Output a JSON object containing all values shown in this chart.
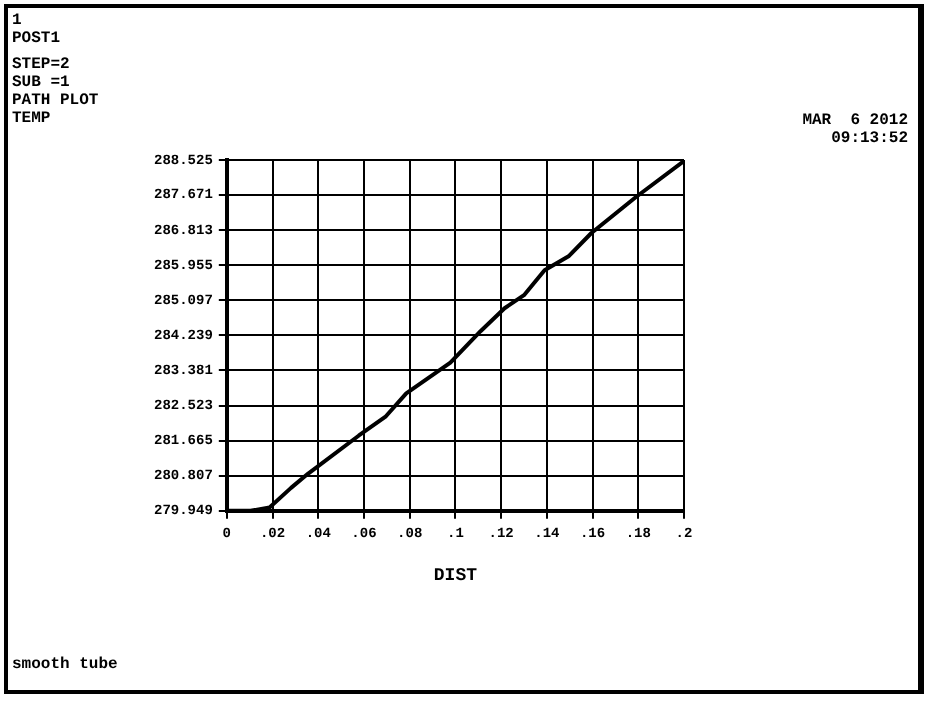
{
  "chart_data": {
    "type": "line",
    "xlabel": "DIST",
    "annotations": [
      "1",
      "POST1",
      "STEP=2",
      "SUB =1",
      "PATH PLOT",
      "TEMP",
      "MAR  6 2012",
      "09:13:52",
      "smooth tube"
    ],
    "x": [
      0,
      0.0104,
      0.0187,
      0.0281,
      0.0356,
      0.0578,
      0.0696,
      0.0785,
      0.0978,
      0.111,
      0.1215,
      0.13,
      0.139,
      0.1497,
      0.1595,
      0.179,
      0.2
    ],
    "series": [
      {
        "color": "#000000",
        "values": [
          279.95,
          279.95,
          280.03,
          280.51,
          280.86,
          281.79,
          282.26,
          282.82,
          283.57,
          284.34,
          284.9,
          285.22,
          285.83,
          286.18,
          286.74,
          287.62,
          288.5
        ]
      }
    ],
    "xlim": [
      0,
      0.2
    ],
    "xticks": [
      0,
      {
        "value": 0.02,
        "label": ".02"
      },
      {
        "value": 0.04,
        "label": ".04"
      },
      {
        "value": 0.06,
        "label": ".06"
      },
      {
        "value": 0.08,
        "label": ".08"
      },
      {
        "value": 0.1,
        "label": ".1"
      },
      {
        "value": 0.12,
        "label": ".12"
      },
      {
        "value": 0.14,
        "label": ".14"
      },
      {
        "value": 0.16,
        "label": ".16"
      },
      {
        "value": 0.18,
        "label": ".18"
      },
      {
        "value": 0.2,
        "label": ".2"
      }
    ],
    "ylim": [
      279.949,
      288.525
    ],
    "yticks": [
      279.949,
      280.807,
      281.665,
      282.523,
      283.381,
      284.239,
      285.097,
      285.955,
      286.813,
      287.671,
      288.525
    ],
    "grid": true,
    "legend": false,
    "marker": "none",
    "line_style": "solid"
  }
}
